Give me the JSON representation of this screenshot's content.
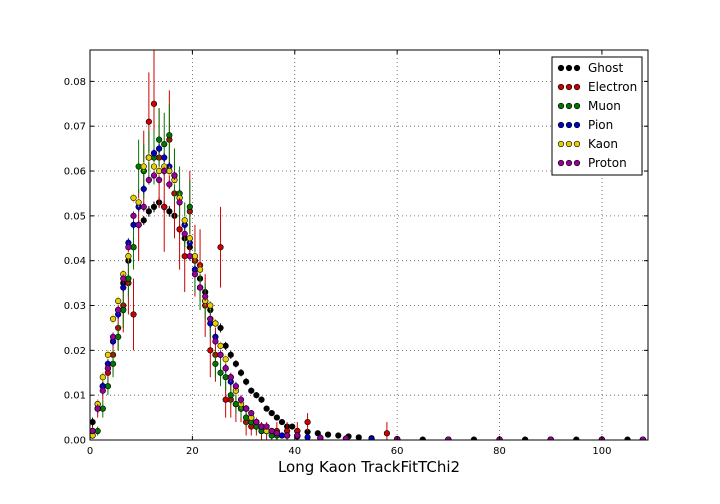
{
  "chart_data": {
    "type": "scatter",
    "xlabel": "Long Kaon TrackFitTChi2",
    "ylabel": "",
    "title": "",
    "xlim": [
      0,
      109
    ],
    "ylim": [
      0,
      0.087
    ],
    "xticks": [
      0,
      20,
      40,
      60,
      80,
      100
    ],
    "xtick_labels": [
      "0",
      "20",
      "40",
      "60",
      "80",
      "100"
    ],
    "yticks": [
      0.0,
      0.01,
      0.02,
      0.03,
      0.04,
      0.05,
      0.06,
      0.07,
      0.08
    ],
    "ytick_labels": [
      "0.00",
      "0.01",
      "0.02",
      "0.03",
      "0.04",
      "0.05",
      "0.06",
      "0.07",
      "0.08"
    ],
    "grid": true,
    "legend_position": "top-right",
    "bin_width": 1.0,
    "series": [
      {
        "name": "Ghost",
        "color": "#000000",
        "x": [
          0.5,
          1.5,
          2.5,
          3.5,
          4.5,
          5.5,
          6.5,
          7.5,
          8.5,
          9.5,
          10.5,
          11.5,
          12.5,
          13.5,
          14.5,
          15.5,
          16.5,
          17.5,
          18.5,
          19.5,
          20.5,
          21.5,
          22.5,
          23.5,
          24.5,
          25.5,
          26.5,
          27.5,
          28.5,
          29.5,
          30.5,
          31.5,
          32.5,
          33.5,
          34.5,
          35.5,
          36.5,
          37.5,
          38.5,
          39.5,
          40.5,
          42.5,
          44.5,
          46.5,
          48.5,
          50.5,
          52.5,
          55,
          60,
          65,
          70,
          75,
          80,
          85,
          90,
          95,
          100,
          105
        ],
        "y": [
          0.004,
          0.008,
          0.012,
          0.016,
          0.022,
          0.029,
          0.035,
          0.04,
          0.043,
          0.048,
          0.049,
          0.051,
          0.052,
          0.053,
          0.052,
          0.051,
          0.05,
          0.047,
          0.045,
          0.043,
          0.04,
          0.036,
          0.033,
          0.029,
          0.026,
          0.025,
          0.021,
          0.019,
          0.017,
          0.015,
          0.013,
          0.011,
          0.01,
          0.009,
          0.007,
          0.006,
          0.005,
          0.004,
          0.003,
          0.003,
          0.002,
          0.0018,
          0.0015,
          0.0012,
          0.001,
          0.0008,
          0.0006,
          0.0004,
          0.0002,
          0.0001,
          0.0001,
          0.0001,
          0.0001,
          0.0001,
          0.0001,
          0.0001,
          0.0001,
          0.0001
        ],
        "err": [
          0.001,
          0.001,
          0.001,
          0.001,
          0.001,
          0.001,
          0.001,
          0.001,
          0.001,
          0.001,
          0.001,
          0.0012,
          0.0012,
          0.0012,
          0.0012,
          0.0012,
          0.0012,
          0.0011,
          0.0011,
          0.0011,
          0.001,
          0.001,
          0.001,
          0.001,
          0.001,
          0.001,
          0.0009,
          0.0009,
          0.0008,
          0.0008,
          0.0008,
          0.0007,
          0.0007,
          0.0007,
          0.0006,
          0.0006,
          0.0005,
          0.0005,
          0.0004,
          0.0004,
          0.0004,
          0.0003,
          0.0003,
          0.0003,
          0.0003,
          0.0002,
          0.0002,
          0.0002,
          0.0001,
          0.0001,
          0.0001,
          0.0001,
          0.0001,
          0.0001,
          0.0001,
          0.0001,
          0.0001,
          0.0001
        ]
      },
      {
        "name": "Electron",
        "color": "#cc0000",
        "x": [
          0.5,
          1.5,
          2.5,
          3.5,
          4.5,
          5.5,
          6.5,
          7.5,
          8.5,
          9.5,
          10.5,
          11.5,
          12.5,
          13.5,
          14.5,
          15.5,
          16.5,
          17.5,
          18.5,
          19.5,
          20.5,
          21.5,
          22.5,
          23.5,
          24.5,
          25.5,
          26.5,
          27.5,
          28.5,
          29.5,
          30.5,
          31.5,
          32.5,
          33.5,
          34.5,
          36.5,
          38.5,
          40.5,
          42.5,
          58
        ],
        "y": [
          0.002,
          0.007,
          0.012,
          0.015,
          0.019,
          0.025,
          0.03,
          0.035,
          0.028,
          0.048,
          0.06,
          0.071,
          0.075,
          0.063,
          0.052,
          0.067,
          0.055,
          0.047,
          0.041,
          0.051,
          0.04,
          0.039,
          0.03,
          0.02,
          0.019,
          0.043,
          0.009,
          0.009,
          0.008,
          0.007,
          0.004,
          0.003,
          0.003,
          0.002,
          0.002,
          0.002,
          0.002,
          0.002,
          0.004,
          0.0015
        ],
        "err": [
          0.001,
          0.002,
          0.003,
          0.003,
          0.004,
          0.005,
          0.006,
          0.007,
          0.008,
          0.008,
          0.009,
          0.011,
          0.012,
          0.011,
          0.01,
          0.011,
          0.01,
          0.009,
          0.008,
          0.009,
          0.008,
          0.008,
          0.007,
          0.006,
          0.006,
          0.009,
          0.004,
          0.004,
          0.004,
          0.003,
          0.003,
          0.002,
          0.002,
          0.002,
          0.002,
          0.002,
          0.002,
          0.002,
          0.002,
          0.0025
        ]
      },
      {
        "name": "Muon",
        "color": "#007700",
        "x": [
          0.5,
          1.5,
          2.5,
          3.5,
          4.5,
          5.5,
          6.5,
          7.5,
          8.5,
          9.5,
          10.5,
          11.5,
          12.5,
          13.5,
          14.5,
          15.5,
          16.5,
          17.5,
          18.5,
          19.5,
          20.5,
          21.5,
          22.5,
          23.5,
          24.5,
          25.5,
          26.5,
          27.5,
          28.5,
          29.5,
          30.5,
          31.5,
          32.5,
          33.5,
          34.5,
          35.5,
          36.5,
          38.5,
          40.5
        ],
        "y": [
          0.001,
          0.002,
          0.007,
          0.012,
          0.017,
          0.023,
          0.029,
          0.036,
          0.043,
          0.061,
          0.06,
          0.063,
          0.063,
          0.067,
          0.066,
          0.068,
          0.059,
          0.055,
          0.048,
          0.052,
          0.038,
          0.034,
          0.031,
          0.027,
          0.017,
          0.015,
          0.014,
          0.01,
          0.008,
          0.007,
          0.005,
          0.004,
          0.003,
          0.002,
          0.002,
          0.001,
          0.001,
          0.001,
          0.001
        ],
        "err": [
          0.0005,
          0.001,
          0.002,
          0.002,
          0.003,
          0.003,
          0.004,
          0.004,
          0.005,
          0.006,
          0.006,
          0.006,
          0.006,
          0.007,
          0.007,
          0.007,
          0.006,
          0.006,
          0.005,
          0.006,
          0.005,
          0.005,
          0.004,
          0.004,
          0.003,
          0.003,
          0.003,
          0.002,
          0.002,
          0.002,
          0.002,
          0.001,
          0.001,
          0.001,
          0.001,
          0.001,
          0.001,
          0.001,
          0.001
        ]
      },
      {
        "name": "Pion",
        "color": "#0000cc",
        "x": [
          0.5,
          1.5,
          2.5,
          3.5,
          4.5,
          5.5,
          6.5,
          7.5,
          8.5,
          9.5,
          10.5,
          11.5,
          12.5,
          13.5,
          14.5,
          15.5,
          16.5,
          17.5,
          18.5,
          19.5,
          20.5,
          21.5,
          22.5,
          23.5,
          24.5,
          25.5,
          26.5,
          27.5,
          28.5,
          29.5,
          30.5,
          31.5,
          32.5,
          33.5,
          34.5,
          35.5,
          36.5,
          37.5,
          38.5,
          40.5,
          42.5,
          45,
          50,
          55,
          60,
          70,
          80,
          90,
          100,
          108
        ],
        "y": [
          0.002,
          0.007,
          0.012,
          0.017,
          0.022,
          0.028,
          0.034,
          0.044,
          0.048,
          0.052,
          0.056,
          0.063,
          0.064,
          0.065,
          0.063,
          0.061,
          0.059,
          0.054,
          0.048,
          0.044,
          0.038,
          0.034,
          0.031,
          0.026,
          0.023,
          0.019,
          0.016,
          0.013,
          0.011,
          0.008,
          0.007,
          0.005,
          0.004,
          0.003,
          0.002,
          0.002,
          0.0015,
          0.001,
          0.001,
          0.0008,
          0.0006,
          0.0004,
          0.0003,
          0.0002,
          0.0001,
          0.0001,
          0.0001,
          0.0001,
          0.0001,
          0.0001
        ],
        "err": [
          0.0005,
          0.001,
          0.001,
          0.001,
          0.001,
          0.001,
          0.001,
          0.001,
          0.001,
          0.001,
          0.001,
          0.001,
          0.001,
          0.001,
          0.001,
          0.001,
          0.001,
          0.001,
          0.001,
          0.001,
          0.001,
          0.001,
          0.001,
          0.001,
          0.001,
          0.001,
          0.001,
          0.001,
          0.001,
          0.001,
          0.0008,
          0.0007,
          0.0006,
          0.0005,
          0.0005,
          0.0004,
          0.0004,
          0.0003,
          0.0003,
          0.0003,
          0.0002,
          0.0002,
          0.0001,
          0.0001,
          0.0001,
          0.0001,
          0.0001,
          0.0001,
          0.0001,
          0.0001
        ]
      },
      {
        "name": "Kaon",
        "color": "#e8d000",
        "x": [
          0.5,
          1.5,
          2.5,
          3.5,
          4.5,
          5.5,
          6.5,
          7.5,
          8.5,
          9.5,
          10.5,
          11.5,
          12.5,
          13.5,
          14.5,
          15.5,
          16.5,
          17.5,
          18.5,
          19.5,
          20.5,
          21.5,
          22.5,
          23.5,
          24.5,
          25.5,
          26.5,
          27.5,
          28.5,
          29.5,
          30.5,
          31.5,
          32.5,
          33.5,
          34.5,
          35.5,
          36.5,
          38.5,
          40.5,
          45,
          50,
          60,
          70,
          80,
          90,
          100,
          108
        ],
        "y": [
          0.001,
          0.008,
          0.014,
          0.019,
          0.027,
          0.031,
          0.037,
          0.041,
          0.054,
          0.053,
          0.061,
          0.063,
          0.061,
          0.06,
          0.061,
          0.06,
          0.058,
          0.054,
          0.049,
          0.045,
          0.041,
          0.038,
          0.031,
          0.03,
          0.026,
          0.021,
          0.018,
          0.014,
          0.011,
          0.008,
          0.007,
          0.005,
          0.004,
          0.003,
          0.002,
          0.002,
          0.0015,
          0.001,
          0.001,
          0.0005,
          0.0003,
          0.0002,
          0.0001,
          0.0001,
          0.0001,
          0.0001,
          0.0001
        ],
        "err": [
          0.0005,
          0.001,
          0.001,
          0.001,
          0.001,
          0.001,
          0.001,
          0.001,
          0.001,
          0.001,
          0.001,
          0.001,
          0.001,
          0.001,
          0.001,
          0.001,
          0.001,
          0.001,
          0.001,
          0.001,
          0.001,
          0.001,
          0.001,
          0.001,
          0.001,
          0.001,
          0.001,
          0.001,
          0.001,
          0.001,
          0.0008,
          0.0007,
          0.0006,
          0.0005,
          0.0005,
          0.0004,
          0.0004,
          0.0003,
          0.0003,
          0.0002,
          0.0001,
          0.0001,
          0.0001,
          0.0001,
          0.0001,
          0.0001,
          0.0001
        ]
      },
      {
        "name": "Proton",
        "color": "#990099",
        "x": [
          0.5,
          1.5,
          2.5,
          3.5,
          4.5,
          5.5,
          6.5,
          7.5,
          8.5,
          9.5,
          10.5,
          11.5,
          12.5,
          13.5,
          14.5,
          15.5,
          16.5,
          17.5,
          18.5,
          19.5,
          20.5,
          21.5,
          22.5,
          23.5,
          24.5,
          25.5,
          26.5,
          27.5,
          28.5,
          29.5,
          30.5,
          31.5,
          32.5,
          33.5,
          34.5,
          35.5,
          36.5,
          38.5,
          40.5,
          45,
          50,
          60,
          70,
          80,
          90,
          100,
          108
        ],
        "y": [
          0.002,
          0.007,
          0.011,
          0.016,
          0.023,
          0.029,
          0.036,
          0.043,
          0.05,
          0.048,
          0.052,
          0.058,
          0.059,
          0.058,
          0.06,
          0.057,
          0.059,
          0.053,
          0.046,
          0.041,
          0.037,
          0.034,
          0.032,
          0.027,
          0.022,
          0.019,
          0.016,
          0.014,
          0.012,
          0.009,
          0.007,
          0.006,
          0.004,
          0.003,
          0.003,
          0.002,
          0.0015,
          0.001,
          0.001,
          0.0005,
          0.0003,
          0.0002,
          0.0001,
          0.0001,
          0.0001,
          0.0001,
          0.0001
        ],
        "err": [
          0.0005,
          0.001,
          0.001,
          0.001,
          0.001,
          0.001,
          0.001,
          0.001,
          0.001,
          0.001,
          0.001,
          0.001,
          0.001,
          0.001,
          0.001,
          0.001,
          0.001,
          0.001,
          0.001,
          0.001,
          0.001,
          0.001,
          0.001,
          0.001,
          0.001,
          0.001,
          0.001,
          0.001,
          0.001,
          0.001,
          0.0008,
          0.0007,
          0.0006,
          0.0005,
          0.0005,
          0.0004,
          0.0004,
          0.0003,
          0.0003,
          0.0002,
          0.0001,
          0.0001,
          0.0001,
          0.0001,
          0.0001,
          0.0001,
          0.0001
        ]
      }
    ]
  }
}
